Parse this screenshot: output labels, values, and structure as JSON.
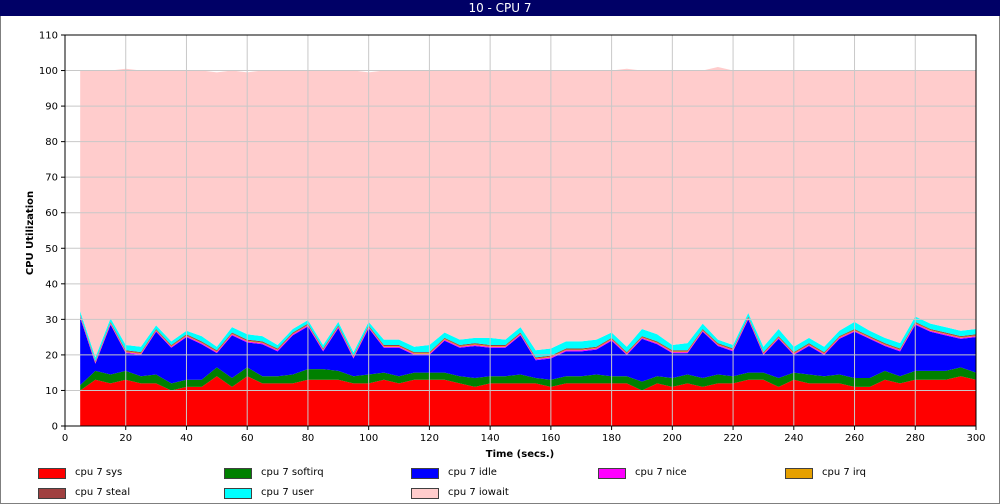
{
  "window": {
    "title": "10 - CPU 7"
  },
  "chart_data": {
    "type": "area",
    "stacked": true,
    "title": "10 - CPU 7",
    "xlabel": "Time (secs.)",
    "ylabel": "CPU Utilization",
    "xlim": [
      0,
      300
    ],
    "ylim": [
      0,
      110
    ],
    "x_ticks": [
      0,
      20,
      40,
      60,
      80,
      100,
      120,
      140,
      160,
      180,
      200,
      220,
      240,
      260,
      280,
      300
    ],
    "y_ticks": [
      0,
      10,
      20,
      30,
      40,
      50,
      60,
      70,
      80,
      90,
      100,
      110
    ],
    "grid": true,
    "legend_position": "bottom",
    "x": [
      5,
      10,
      15,
      20,
      25,
      30,
      35,
      40,
      45,
      50,
      55,
      60,
      65,
      70,
      75,
      80,
      85,
      90,
      95,
      100,
      105,
      110,
      115,
      120,
      125,
      130,
      135,
      140,
      145,
      150,
      155,
      160,
      165,
      170,
      175,
      180,
      185,
      190,
      195,
      200,
      205,
      210,
      215,
      220,
      225,
      230,
      235,
      240,
      245,
      250,
      255,
      260,
      265,
      270,
      275,
      280,
      285,
      290,
      295,
      300
    ],
    "series": [
      {
        "name": "cpu 7 sys",
        "color": "#ff0000",
        "values": [
          10,
          13,
          12,
          13,
          12,
          12,
          10,
          11,
          11,
          14,
          11,
          14,
          12,
          12,
          12,
          13,
          13,
          13,
          12,
          12,
          13,
          12,
          13,
          13,
          13,
          12,
          11,
          12,
          12,
          12,
          12,
          11,
          12,
          12,
          12,
          12,
          12,
          10,
          12,
          11,
          12,
          11,
          12,
          12,
          13,
          13,
          11,
          13,
          12,
          12,
          12,
          11,
          11,
          13,
          12,
          13,
          13,
          13,
          14,
          13
        ]
      },
      {
        "name": "cpu 7 softirq",
        "color": "#008000",
        "values": [
          1.5,
          2.5,
          2.5,
          2.5,
          2,
          2.5,
          2,
          2,
          2,
          2.5,
          2.5,
          2.5,
          2,
          2,
          2.5,
          3,
          3,
          2.5,
          2,
          2.5,
          2,
          2,
          2,
          2,
          2,
          2,
          2.5,
          2,
          2,
          2.5,
          1.5,
          2,
          2,
          2,
          2.5,
          2,
          2,
          2.5,
          2,
          2.5,
          2.5,
          2.5,
          2.5,
          2,
          2,
          2,
          2.5,
          2,
          2.5,
          2,
          2.5,
          2.5,
          2.5,
          2.5,
          2,
          2.5,
          2.5,
          2.5,
          2.5,
          2
        ]
      },
      {
        "name": "cpu 7 idle",
        "color": "#0000ff",
        "values": [
          19,
          2,
          14,
          5,
          6,
          12,
          10,
          12,
          10,
          4,
          12,
          7,
          9,
          7,
          11,
          12,
          5,
          12,
          5,
          13,
          7,
          8,
          5,
          5,
          9,
          8,
          9,
          8,
          8,
          11,
          5,
          6,
          7,
          7,
          7,
          10,
          6,
          12,
          9,
          7,
          6,
          13,
          8,
          7,
          15,
          5,
          11,
          5,
          8,
          6,
          10,
          13,
          11,
          7,
          7,
          13,
          11,
          10,
          8,
          10
        ]
      },
      {
        "name": "cpu 7 nice",
        "color": "#ff00ff",
        "values": [
          0.3,
          0.3,
          0.3,
          0.3,
          0.3,
          0.3,
          0.3,
          0.3,
          0.3,
          0.3,
          0.3,
          0.3,
          0.3,
          0.3,
          0.3,
          0.3,
          0.3,
          0.3,
          0.3,
          0.3,
          0.3,
          0.3,
          0.3,
          0.3,
          0.3,
          0.3,
          0.3,
          0.3,
          0.3,
          0.3,
          0.3,
          0.3,
          0.3,
          0.3,
          0.3,
          0.3,
          0.3,
          0.3,
          0.3,
          0.3,
          0.3,
          0.3,
          0.3,
          0.3,
          0.3,
          0.3,
          0.3,
          0.3,
          0.3,
          0.3,
          0.3,
          0.3,
          0.3,
          0.3,
          0.3,
          0.3,
          0.3,
          0.3,
          0.3,
          0.3
        ]
      },
      {
        "name": "cpu 7 irq",
        "color": "#e6a000",
        "values": [
          0.2,
          0.2,
          0.2,
          0.2,
          0.2,
          0.2,
          0.2,
          0.2,
          0.2,
          0.2,
          0.2,
          0.2,
          0.2,
          0.2,
          0.2,
          0.2,
          0.2,
          0.2,
          0.2,
          0.2,
          0.2,
          0.2,
          0.2,
          0.2,
          0.2,
          0.2,
          0.2,
          0.2,
          0.2,
          0.2,
          0.2,
          0.2,
          0.2,
          0.2,
          0.2,
          0.2,
          0.2,
          0.2,
          0.2,
          0.2,
          0.2,
          0.2,
          0.2,
          0.2,
          0.2,
          0.2,
          0.2,
          0.2,
          0.2,
          0.2,
          0.2,
          0.2,
          0.2,
          0.2,
          0.2,
          0.2,
          0.2,
          0.2,
          0.2,
          0.2
        ]
      },
      {
        "name": "cpu 7 steal",
        "color": "#a04040",
        "values": [
          0.3,
          0.3,
          0.3,
          0.3,
          0.3,
          0.3,
          0.3,
          0.3,
          0.3,
          0.3,
          0.3,
          0.3,
          0.3,
          0.3,
          0.3,
          0.3,
          0.3,
          0.3,
          0.3,
          0.3,
          0.3,
          0.3,
          0.3,
          0.3,
          0.3,
          0.3,
          0.3,
          0.3,
          0.3,
          0.3,
          0.3,
          0.3,
          0.3,
          0.3,
          0.3,
          0.3,
          0.3,
          0.3,
          0.3,
          0.3,
          0.3,
          0.3,
          0.3,
          0.3,
          0.3,
          0.3,
          0.3,
          0.3,
          0.3,
          0.3,
          0.3,
          0.3,
          0.3,
          0.3,
          0.3,
          0.3,
          0.3,
          0.3,
          0.3,
          0.3
        ]
      },
      {
        "name": "cpu 7 user",
        "color": "#00ffff",
        "values": [
          1,
          1,
          1,
          1.5,
          1.5,
          1,
          1,
          1,
          1.5,
          1,
          1.5,
          1.5,
          1.5,
          1,
          1,
          1,
          1,
          1,
          1,
          1,
          1.5,
          1.5,
          1.5,
          2,
          1.5,
          1.5,
          1.5,
          2,
          1.5,
          1.5,
          2,
          2,
          2,
          2,
          2,
          1.5,
          1.5,
          2,
          2,
          1.5,
          2,
          1.5,
          1,
          1,
          1,
          1.5,
          2,
          1.5,
          1.5,
          1.5,
          1.5,
          2,
          1.5,
          1.5,
          1.5,
          1.5,
          1.5,
          1.5,
          1.5,
          1.5
        ]
      },
      {
        "name": "cpu 7 iowait",
        "color": "#ffcccc",
        "values": [
          67.7,
          80.7,
          69.7,
          77.7,
          77.7,
          71.7,
          76.2,
          73.2,
          74.7,
          77.2,
          72.2,
          73.7,
          74.7,
          77.2,
          72.7,
          70.2,
          77.2,
          70.7,
          79.2,
          70.2,
          75.7,
          75.7,
          77.7,
          77.2,
          73.7,
          75.7,
          75.2,
          75.2,
          75.7,
          72.2,
          78.7,
          78.2,
          76.2,
          76.2,
          75.7,
          73.7,
          78.2,
          72.7,
          74.2,
          77.2,
          76.7,
          71.2,
          76.7,
          77.2,
          68.2,
          77.7,
          72.7,
          77.7,
          75.2,
          77.7,
          73.2,
          70.7,
          73.2,
          75.2,
          76.7,
          69.2,
          71.2,
          72.2,
          73.2,
          72.7
        ]
      }
    ]
  }
}
